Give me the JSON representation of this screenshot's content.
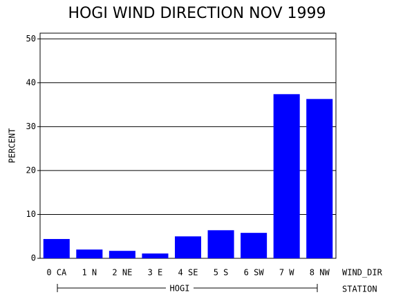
{
  "chart_data": {
    "type": "bar",
    "title": "HOGI WIND DIRECTION NOV 1999",
    "y_label": "PERCENT",
    "x_label": "WIND_DIR",
    "group_label": "STATION",
    "group": "HOGI",
    "categories": [
      "0 CA",
      "1 N",
      "2 NE",
      "3 E",
      "4 SE",
      "5 S",
      "6 SW",
      "7 W",
      "8 NW"
    ],
    "values": [
      4.4,
      2.0,
      1.7,
      1.1,
      5.0,
      6.4,
      5.8,
      37.4,
      36.3
    ],
    "color": "#0000ff",
    "ylim": [
      0,
      51.3
    ],
    "yticks": [
      0,
      10,
      20,
      30,
      40,
      50
    ],
    "grid": true
  }
}
